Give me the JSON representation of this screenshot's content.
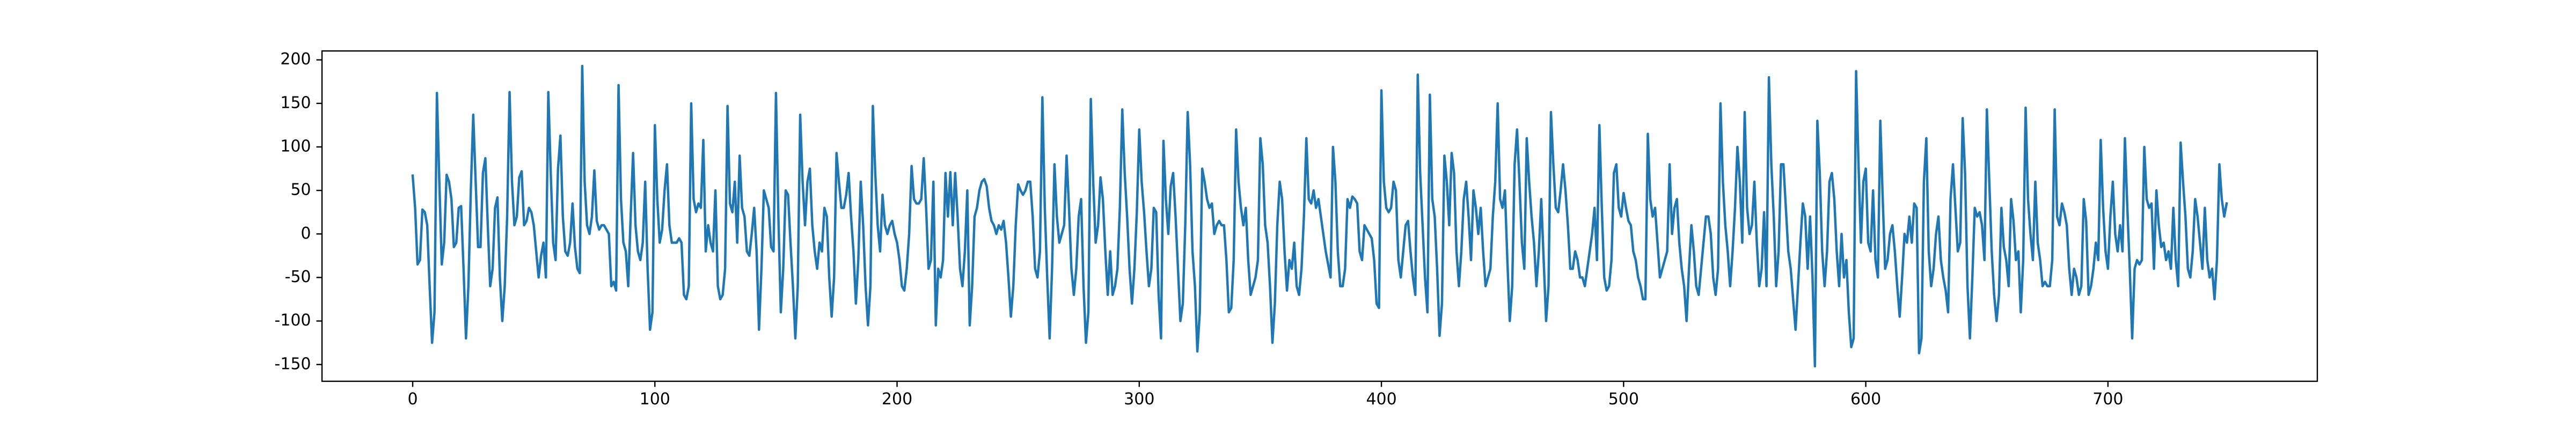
{
  "chart_data": {
    "type": "line",
    "color": "#1f77b4",
    "x": [
      0,
      1,
      2,
      3,
      4,
      5,
      6,
      7,
      8,
      9,
      10,
      11,
      12,
      13,
      14,
      15,
      16,
      17,
      18,
      19,
      20,
      21,
      22,
      23,
      24,
      25,
      26,
      27,
      28,
      29,
      30,
      31,
      32,
      33,
      34,
      35,
      36,
      37,
      38,
      39,
      40,
      41,
      42,
      43,
      44,
      45,
      46,
      47,
      48,
      49,
      50,
      51,
      52,
      53,
      54,
      55,
      56,
      57,
      58,
      59,
      60,
      61,
      62,
      63,
      64,
      65,
      66,
      67,
      68,
      69,
      70,
      71,
      72,
      73,
      74,
      75,
      76,
      77,
      78,
      79,
      80,
      81,
      82,
      83,
      84,
      85,
      86,
      87,
      88,
      89,
      90,
      91,
      92,
      93,
      94,
      95,
      96,
      97,
      98,
      99,
      100,
      101,
      102,
      103,
      104,
      105,
      106,
      107,
      108,
      109,
      110,
      111,
      112,
      113,
      114,
      115,
      116,
      117,
      118,
      119,
      120,
      121,
      122,
      123,
      124,
      125,
      126,
      127,
      128,
      129,
      130,
      131,
      132,
      133,
      134,
      135,
      136,
      137,
      138,
      139,
      140,
      141,
      142,
      143,
      144,
      145,
      146,
      147,
      148,
      149,
      150,
      151,
      152,
      153,
      154,
      155,
      156,
      157,
      158,
      159,
      160,
      161,
      162,
      163,
      164,
      165,
      166,
      167,
      168,
      169,
      170,
      171,
      172,
      173,
      174,
      175,
      176,
      177,
      178,
      179,
      180,
      181,
      182,
      183,
      184,
      185,
      186,
      187,
      188,
      189,
      190,
      191,
      192,
      193,
      194,
      195,
      196,
      197,
      198,
      199,
      200,
      201,
      202,
      203,
      204,
      205,
      206,
      207,
      208,
      209,
      210,
      211,
      212,
      213,
      214,
      215,
      216,
      217,
      218,
      219,
      220,
      221,
      222,
      223,
      224,
      225,
      226,
      227,
      228,
      229,
      230,
      231,
      232,
      233,
      234,
      235,
      236,
      237,
      238,
      239,
      240,
      241,
      242,
      243,
      244,
      245,
      246,
      247,
      248,
      249,
      250,
      251,
      252,
      253,
      254,
      255,
      256,
      257,
      258,
      259,
      260,
      261,
      262,
      263,
      264,
      265,
      266,
      267,
      268,
      269,
      270,
      271,
      272,
      273,
      274,
      275,
      276,
      277,
      278,
      279,
      280,
      281,
      282,
      283,
      284,
      285,
      286,
      287,
      288,
      289,
      290,
      291,
      292,
      293,
      294,
      295,
      296,
      297,
      298,
      299,
      300,
      301,
      302,
      303,
      304,
      305,
      306,
      307,
      308,
      309,
      310,
      311,
      312,
      313,
      314,
      315,
      316,
      317,
      318,
      319,
      320,
      321,
      322,
      323,
      324,
      325,
      326,
      327,
      328,
      329,
      330,
      331,
      332,
      333,
      334,
      335,
      336,
      337,
      338,
      339,
      340,
      341,
      342,
      343,
      344,
      345,
      346,
      347,
      348,
      349,
      350,
      351,
      352,
      353,
      354,
      355,
      356,
      357,
      358,
      359,
      360,
      361,
      362,
      363,
      364,
      365,
      366,
      367,
      368,
      369,
      370,
      371,
      372,
      373,
      374,
      375,
      376,
      377,
      378,
      379,
      380,
      381,
      382,
      383,
      384,
      385,
      386,
      387,
      388,
      389,
      390,
      391,
      392,
      393,
      394,
      395,
      396,
      397,
      398,
      399,
      400,
      401,
      402,
      403,
      404,
      405,
      406,
      407,
      408,
      409,
      410,
      411,
      412,
      413,
      414,
      415,
      416,
      417,
      418,
      419,
      420,
      421,
      422,
      423,
      424,
      425,
      426,
      427,
      428,
      429,
      430,
      431,
      432,
      433,
      434,
      435,
      436,
      437,
      438,
      439,
      440,
      441,
      442,
      443,
      444,
      445,
      446,
      447,
      448,
      449,
      450,
      451,
      452,
      453,
      454,
      455,
      456,
      457,
      458,
      459,
      460,
      461,
      462,
      463,
      464,
      465,
      466,
      467,
      468,
      469,
      470,
      471,
      472,
      473,
      474,
      475,
      476,
      477,
      478,
      479,
      480,
      481,
      482,
      483,
      484,
      485,
      486,
      487,
      488,
      489,
      490,
      491,
      492,
      493,
      494,
      495,
      496,
      497,
      498,
      499,
      500,
      501,
      502,
      503,
      504,
      505,
      506,
      507,
      508,
      509,
      510,
      511,
      512,
      513,
      514,
      515,
      516,
      517,
      518,
      519,
      520,
      521,
      522,
      523,
      524,
      525,
      526,
      527,
      528,
      529,
      530,
      531,
      532,
      533,
      534,
      535,
      536,
      537,
      538,
      539,
      540,
      541,
      542,
      543,
      544,
      545,
      546,
      547,
      548,
      549,
      550,
      551,
      552,
      553,
      554,
      555,
      556,
      557,
      558,
      559,
      560,
      561,
      562,
      563,
      564,
      565,
      566,
      567,
      568,
      569,
      570,
      571,
      572,
      573,
      574,
      575,
      576,
      577,
      578,
      579,
      580,
      581,
      582,
      583,
      584,
      585,
      586,
      587,
      588,
      589,
      590,
      591,
      592,
      593,
      594,
      595,
      596,
      597,
      598,
      599,
      600,
      601,
      602,
      603,
      604,
      605,
      606,
      607,
      608,
      609,
      610,
      611,
      612,
      613,
      614,
      615,
      616,
      617,
      618,
      619,
      620,
      621,
      622,
      623,
      624,
      625,
      626,
      627,
      628,
      629,
      630,
      631,
      632,
      633,
      634,
      635,
      636,
      637,
      638,
      639,
      640,
      641,
      642,
      643,
      644,
      645,
      646,
      647,
      648,
      649,
      650,
      651,
      652,
      653,
      654,
      655,
      656,
      657,
      658,
      659,
      660,
      661,
      662,
      663,
      664,
      665,
      666,
      667,
      668,
      669,
      670,
      671,
      672,
      673,
      674,
      675,
      676,
      677,
      678,
      679,
      680,
      681,
      682,
      683,
      684,
      685,
      686,
      687,
      688,
      689,
      690,
      691,
      692,
      693,
      694,
      695,
      696,
      697,
      698,
      699,
      700,
      701,
      702,
      703,
      704,
      705,
      706,
      707,
      708,
      709,
      710,
      711,
      712,
      713,
      714,
      715,
      716,
      717,
      718,
      719,
      720,
      721,
      722,
      723,
      724,
      725,
      726,
      727,
      728,
      729,
      730,
      731,
      732,
      733,
      734,
      735,
      736,
      737,
      738,
      739,
      740,
      741,
      742,
      743,
      744,
      745,
      746,
      747,
      748,
      749
    ],
    "values": [
      67,
      30,
      -35,
      -30,
      28,
      25,
      10,
      -60,
      -125,
      -90,
      162,
      60,
      -35,
      -10,
      68,
      60,
      40,
      -15,
      -10,
      30,
      32,
      -40,
      -120,
      -60,
      50,
      137,
      60,
      -15,
      -15,
      70,
      87,
      10,
      -60,
      -40,
      30,
      42,
      -50,
      -100,
      -60,
      20,
      163,
      60,
      10,
      20,
      65,
      72,
      10,
      15,
      30,
      25,
      10,
      -20,
      -50,
      -25,
      -10,
      -50,
      163,
      70,
      -10,
      -30,
      75,
      113,
      20,
      -20,
      -25,
      -10,
      35,
      -15,
      -40,
      -45,
      193,
      60,
      10,
      0,
      20,
      73,
      15,
      5,
      10,
      10,
      5,
      0,
      -60,
      -55,
      -65,
      171,
      40,
      -10,
      -20,
      -60,
      20,
      93,
      10,
      -20,
      -30,
      -10,
      60,
      -40,
      -110,
      -90,
      125,
      40,
      -10,
      5,
      50,
      80,
      10,
      -10,
      -10,
      -10,
      -5,
      -10,
      -70,
      -75,
      -60,
      150,
      40,
      25,
      35,
      30,
      108,
      -20,
      10,
      -10,
      -20,
      50,
      -60,
      -75,
      -70,
      -40,
      147,
      35,
      25,
      60,
      -10,
      90,
      30,
      20,
      -20,
      -25,
      0,
      30,
      -20,
      -110,
      -40,
      50,
      40,
      30,
      -15,
      -20,
      162,
      20,
      -90,
      -40,
      50,
      45,
      -10,
      -60,
      -120,
      -60,
      137,
      60,
      10,
      60,
      75,
      10,
      -20,
      -40,
      -10,
      -20,
      30,
      20,
      -50,
      -95,
      -50,
      93,
      60,
      30,
      30,
      45,
      70,
      20,
      -20,
      -80,
      -30,
      60,
      10,
      -60,
      -105,
      -60,
      147,
      70,
      10,
      -20,
      45,
      10,
      0,
      10,
      15,
      0,
      -10,
      -30,
      -60,
      -65,
      -40,
      0,
      78,
      40,
      35,
      35,
      40,
      87,
      30,
      -40,
      -30,
      60,
      -105,
      -40,
      -50,
      -30,
      70,
      20,
      71,
      10,
      70,
      20,
      -40,
      -60,
      -20,
      50,
      -105,
      -60,
      20,
      30,
      50,
      60,
      63,
      55,
      30,
      15,
      10,
      0,
      10,
      5,
      15,
      -10,
      -50,
      -95,
      -60,
      10,
      57,
      50,
      45,
      50,
      60,
      60,
      20,
      -40,
      -50,
      -20,
      157,
      30,
      -50,
      -120,
      -40,
      80,
      20,
      -10,
      0,
      10,
      90,
      30,
      -40,
      -70,
      -40,
      20,
      40,
      -60,
      -125,
      -90,
      155,
      60,
      -10,
      10,
      65,
      40,
      -20,
      -70,
      -20,
      -70,
      -60,
      -40,
      30,
      143,
      70,
      20,
      -40,
      -80,
      -40,
      25,
      120,
      60,
      25,
      -20,
      -60,
      -40,
      30,
      25,
      -70,
      -120,
      107,
      40,
      0,
      55,
      70,
      20,
      -40,
      -100,
      -80,
      10,
      140,
      80,
      -20,
      -60,
      -135,
      -90,
      75,
      60,
      40,
      30,
      35,
      0,
      10,
      15,
      10,
      10,
      -30,
      -90,
      -85,
      -30,
      120,
      60,
      30,
      10,
      30,
      -30,
      -70,
      -60,
      -50,
      -30,
      110,
      80,
      10,
      -10,
      -60,
      -125,
      -80,
      10,
      60,
      40,
      -20,
      -65,
      -30,
      -40,
      -10,
      -60,
      -70,
      -40,
      20,
      110,
      40,
      35,
      50,
      30,
      40,
      20,
      0,
      -20,
      -35,
      -50,
      100,
      60,
      -20,
      -60,
      -60,
      -40,
      40,
      30,
      43,
      40,
      35,
      -20,
      -30,
      10,
      5,
      0,
      -5,
      -30,
      -80,
      -85,
      165,
      60,
      30,
      25,
      30,
      60,
      50,
      -30,
      -50,
      -20,
      10,
      15,
      -20,
      -50,
      -70,
      183,
      70,
      10,
      -50,
      -90,
      160,
      40,
      20,
      -40,
      -117,
      -80,
      90,
      60,
      10,
      93,
      70,
      -20,
      -60,
      -20,
      40,
      60,
      20,
      -30,
      50,
      30,
      0,
      30,
      -20,
      -60,
      -50,
      -40,
      20,
      60,
      150,
      40,
      30,
      50,
      -30,
      -100,
      -60,
      80,
      120,
      60,
      -10,
      -40,
      110,
      60,
      20,
      -10,
      -60,
      -20,
      40,
      -30,
      -100,
      -60,
      140,
      80,
      30,
      25,
      50,
      80,
      50,
      10,
      -40,
      -40,
      -20,
      -30,
      -50,
      -50,
      -60,
      -40,
      -20,
      0,
      30,
      -30,
      125,
      30,
      -50,
      -65,
      -60,
      -30,
      70,
      80,
      30,
      20,
      47,
      30,
      15,
      10,
      -20,
      -30,
      -50,
      -60,
      -75,
      -75,
      115,
      40,
      20,
      30,
      -10,
      -50,
      -40,
      -30,
      -20,
      80,
      0,
      30,
      40,
      -10,
      -40,
      -60,
      -100,
      -40,
      10,
      -20,
      -60,
      -70,
      -40,
      -10,
      20,
      20,
      0,
      -50,
      -70,
      -40,
      150,
      60,
      10,
      -20,
      -60,
      -20,
      30,
      100,
      60,
      -10,
      140,
      30,
      0,
      10,
      60,
      -10,
      -60,
      -40,
      25,
      -60,
      180,
      80,
      20,
      -60,
      -20,
      80,
      80,
      30,
      -20,
      -40,
      -75,
      -110,
      -60,
      -10,
      35,
      20,
      -40,
      20,
      -50,
      -152,
      130,
      70,
      -20,
      -60,
      -20,
      60,
      70,
      40,
      -20,
      -60,
      0,
      -50,
      -30,
      -90,
      -130,
      -120,
      187,
      80,
      -10,
      60,
      75,
      -10,
      -20,
      50,
      -30,
      -50,
      130,
      40,
      -40,
      -30,
      0,
      10,
      -20,
      -60,
      -95,
      -50,
      0,
      -10,
      20,
      -10,
      35,
      30,
      -137,
      -120,
      60,
      110,
      -20,
      -60,
      -40,
      0,
      20,
      -30,
      -50,
      -65,
      -90,
      40,
      80,
      30,
      -20,
      -10,
      133,
      70,
      -60,
      -120,
      -50,
      30,
      20,
      25,
      10,
      -30,
      143,
      60,
      -20,
      -70,
      -100,
      -70,
      30,
      -15,
      -30,
      -60,
      40,
      15,
      -30,
      -20,
      -90,
      -30,
      145,
      40,
      0,
      -30,
      60,
      -10,
      -30,
      -60,
      -55,
      -60,
      -60,
      -30,
      143,
      20,
      10,
      35,
      25,
      10,
      -40,
      -70,
      -40,
      -50,
      -70,
      -60,
      40,
      15,
      -70,
      -60,
      -40,
      -10,
      -30,
      108,
      30,
      -20,
      -40,
      20,
      60,
      0,
      -20,
      10,
      -20,
      110,
      30,
      -40,
      -120,
      -40,
      -30,
      -35,
      -30,
      100,
      40,
      30,
      35,
      -40,
      50,
      10,
      -15,
      -10,
      -30,
      -20,
      -40,
      30,
      -30,
      -60,
      105,
      60,
      20,
      -40,
      -50,
      -20,
      40,
      20,
      -10,
      -40,
      30,
      -30,
      -50,
      -40,
      -75,
      -30,
      80,
      40,
      20,
      35
    ],
    "xlim": [
      -37.45,
      786.45
    ],
    "xticks": [
      0,
      100,
      200,
      300,
      400,
      500,
      600,
      700
    ],
    "ylim": [
      -169.25,
      210.25
    ],
    "yticks": [
      -150,
      -100,
      -50,
      0,
      50,
      100,
      150,
      200
    ]
  }
}
